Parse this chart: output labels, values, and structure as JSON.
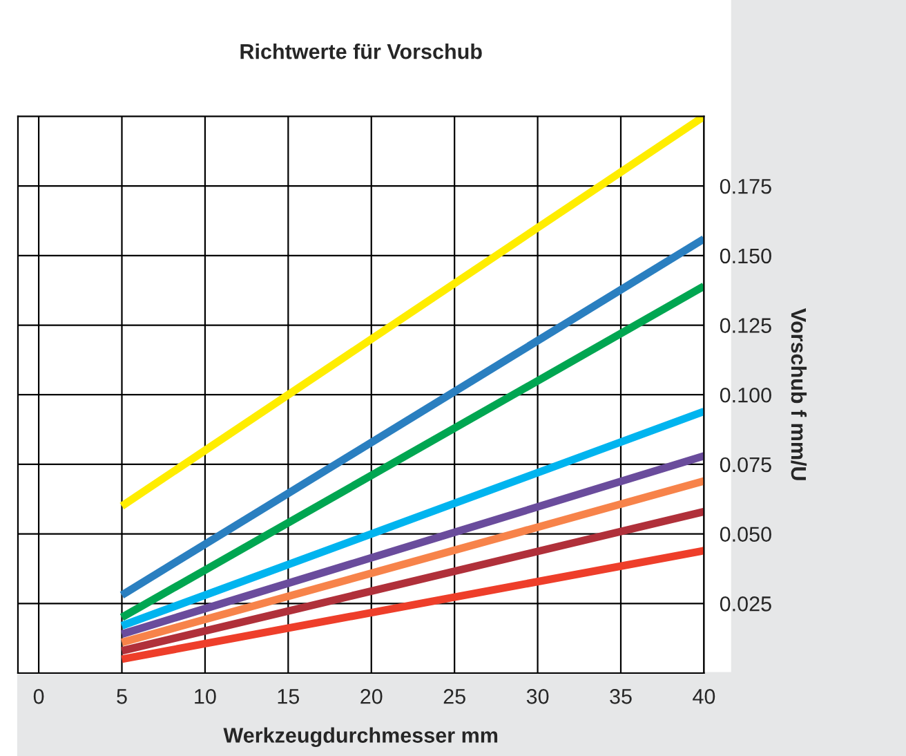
{
  "chart_data": {
    "type": "line",
    "title": "Richtwerte für Vorschub",
    "xlabel": "Werkzeugdurchmesser mm",
    "ylabel": "Vorschub f mm/U",
    "x": [
      5,
      40
    ],
    "series": [
      {
        "color": "#ffed00",
        "values": [
          0.06,
          0.2
        ]
      },
      {
        "color": "#2a7fc0",
        "values": [
          0.028,
          0.156
        ]
      },
      {
        "color": "#00a651",
        "values": [
          0.02,
          0.139
        ]
      },
      {
        "color": "#00b4ef",
        "values": [
          0.017,
          0.094
        ]
      },
      {
        "color": "#6a4c9c",
        "values": [
          0.014,
          0.078
        ]
      },
      {
        "color": "#f7834a",
        "values": [
          0.011,
          0.069
        ]
      },
      {
        "color": "#b0303a",
        "values": [
          0.008,
          0.058
        ]
      },
      {
        "color": "#ee3e2a",
        "values": [
          0.005,
          0.044
        ]
      }
    ],
    "xlim": [
      -1.25,
      40
    ],
    "xticks": [
      0,
      5,
      10,
      15,
      20,
      25,
      30,
      35,
      40
    ],
    "ylim": [
      0,
      0.2
    ],
    "yticks": [
      {
        "value": 0.025,
        "label": "0.025"
      },
      {
        "value": 0.05,
        "label": "0.050"
      },
      {
        "value": 0.075,
        "label": "0.075"
      },
      {
        "value": 0.1,
        "label": "0.100"
      },
      {
        "value": 0.125,
        "label": "0.125"
      },
      {
        "value": 0.15,
        "label": "0.150"
      },
      {
        "value": 0.175,
        "label": "0.175"
      }
    ],
    "grid": true,
    "line_style": "solid",
    "marker": "none"
  }
}
